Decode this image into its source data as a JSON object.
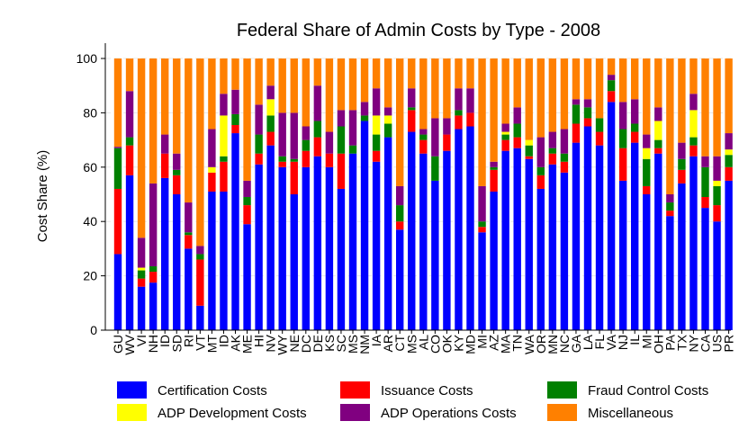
{
  "chart_data": {
    "type": "bar",
    "stacked": true,
    "title": "Federal Share of Admin Costs by Type - 2008",
    "ylabel": "Cost Share (%)",
    "xlabel": "",
    "ylim": [
      0,
      100
    ],
    "yticks": [
      0,
      20,
      40,
      60,
      80,
      100
    ],
    "grid": true,
    "legend_position": "bottom",
    "categories": [
      "GU",
      "WV",
      "VI",
      "NH",
      "ID",
      "SD",
      "RI",
      "VT",
      "MT",
      "ID",
      "AK",
      "ME",
      "HI",
      "NV",
      "WY",
      "NE",
      "DC",
      "DE",
      "KS",
      "SC",
      "MS",
      "NM",
      "IA",
      "AR",
      "CT",
      "MS",
      "AL",
      "CO",
      "OK",
      "KY",
      "MD",
      "MI",
      "AZ",
      "MA",
      "TN",
      "WA",
      "OR",
      "MN",
      "NC",
      "GA",
      "LA",
      "FL",
      "VA",
      "NJ",
      "IL",
      "MI",
      "OH",
      "PA",
      "TX",
      "NY",
      "CA",
      "US",
      "PR"
    ],
    "series": [
      {
        "name": "Certification Costs",
        "color": "#0000ff",
        "values": [
          28,
          57,
          16,
          17.5,
          56,
          50,
          30,
          9,
          51,
          51,
          72.5,
          39,
          61,
          68,
          60,
          50,
          60,
          64,
          60,
          52,
          65,
          77,
          62,
          71,
          37,
          73,
          65,
          55,
          66,
          74,
          75,
          36,
          51,
          66,
          67,
          63,
          52,
          61,
          58,
          69,
          75,
          68,
          84,
          55,
          69,
          50,
          65,
          42,
          54,
          64,
          45,
          40,
          55
        ]
      },
      {
        "name": "Issuance Costs",
        "color": "#ff0000",
        "values": [
          24,
          11,
          3,
          4,
          9,
          7,
          5,
          17,
          7,
          11,
          3,
          7,
          4,
          5,
          2,
          12,
          6,
          7,
          5,
          13,
          0,
          0,
          4,
          0,
          3,
          8,
          5,
          0,
          6,
          5,
          5,
          2,
          8,
          4,
          4,
          1,
          5,
          4,
          4,
          7,
          3,
          5,
          4,
          12,
          4,
          3,
          2,
          2,
          5,
          4,
          4,
          6,
          5
        ]
      },
      {
        "name": "Fraud Control Costs",
        "color": "#008000",
        "values": [
          15,
          3,
          3,
          2,
          0,
          2,
          1,
          2,
          0,
          2,
          4,
          3,
          7,
          6,
          2,
          1,
          4,
          6,
          0,
          10,
          3,
          2,
          6,
          5,
          6,
          1,
          2,
          9,
          0,
          2,
          0,
          2,
          1,
          2,
          5,
          4,
          3,
          2,
          3,
          7,
          4,
          5,
          4,
          7,
          3,
          10,
          3,
          3,
          4,
          3,
          11,
          7,
          4.5
        ]
      },
      {
        "name": "ADP Development Costs",
        "color": "#ffff00",
        "values": [
          0,
          0,
          1,
          0,
          0,
          0,
          0,
          0,
          2,
          15,
          0,
          0,
          0,
          6,
          0,
          0,
          0,
          0,
          0,
          0,
          0,
          0,
          7,
          3,
          0,
          0,
          0,
          0,
          0,
          0,
          0,
          0,
          0,
          1,
          0,
          2,
          0,
          0,
          0,
          0,
          0,
          0,
          0,
          0,
          0,
          4,
          7,
          0,
          0,
          10,
          0,
          2,
          2
        ]
      },
      {
        "name": "ADP Operations Costs",
        "color": "#800080",
        "values": [
          0.5,
          17,
          11,
          30.5,
          7,
          6,
          11,
          3,
          14,
          8,
          9,
          6,
          11,
          5,
          16,
          17,
          5,
          13,
          8,
          6,
          13,
          5,
          10,
          3,
          7,
          7,
          2,
          14,
          6,
          8,
          9,
          13,
          2,
          3,
          6,
          0,
          11,
          6,
          9,
          2,
          3,
          0,
          2,
          10,
          9,
          5,
          5,
          3,
          6,
          6,
          4,
          9,
          6
        ]
      },
      {
        "name": "Miscellaneous",
        "color": "#ff8000",
        "values": [
          32.5,
          12,
          66,
          46,
          28,
          35,
          53,
          69,
          26,
          13,
          11.5,
          45,
          17,
          10,
          20,
          20,
          25,
          10,
          27,
          19,
          19,
          16,
          11,
          18,
          47,
          11,
          26,
          22,
          22,
          11,
          11,
          47,
          38,
          24,
          18,
          30,
          29,
          27,
          26,
          15,
          15,
          22,
          6,
          16,
          15,
          28,
          18,
          50,
          31,
          13,
          36,
          36,
          27.5
        ]
      }
    ],
    "legend": [
      "Certification Costs",
      "Issuance Costs",
      "Fraud Control Costs",
      "ADP Development Costs",
      "ADP Operations Costs",
      "Miscellaneous"
    ]
  }
}
